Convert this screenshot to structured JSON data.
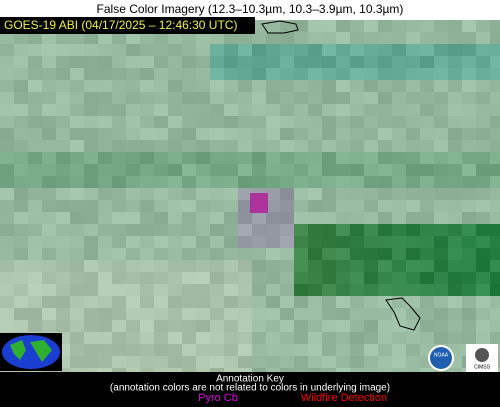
{
  "header": {
    "title": "False Color Imagery (12.3–10.3µm, 10.3–3.9µm, 10.3µm)",
    "timestamp": "GOES-19 ABI (04/17/2025 – 12:46:30 UTC)"
  },
  "logos": {
    "left": "NOAA",
    "right": "CIMSS"
  },
  "annotation_key": {
    "title": "Annotation Key",
    "note": "(annotation colors are not related to colors in underlying image)",
    "items": [
      {
        "label": "Pyro Cb",
        "color": "#e000e0"
      },
      {
        "label": "Wildfire Detection",
        "color": "#ff0000"
      }
    ]
  }
}
